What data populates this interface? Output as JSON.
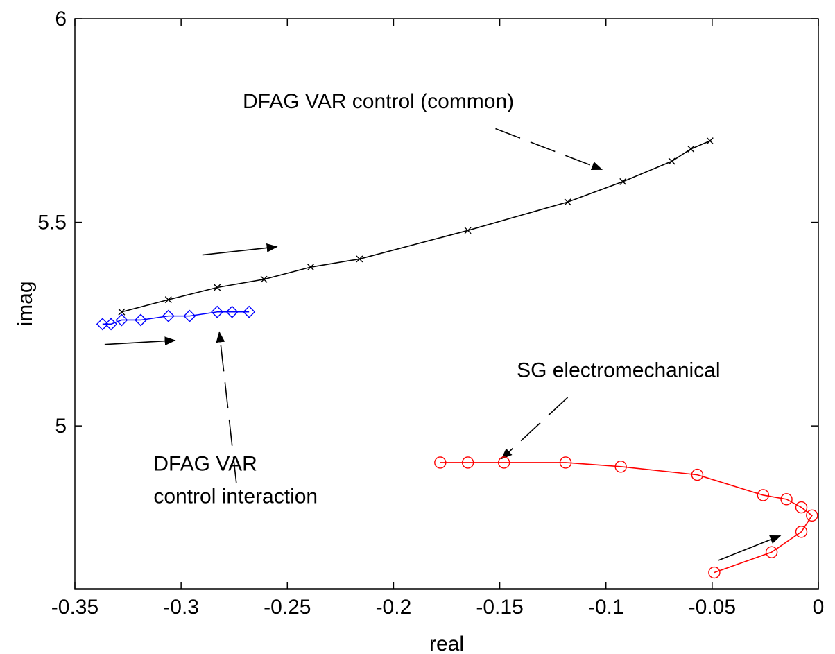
{
  "chart_data": {
    "type": "line",
    "title": "",
    "xlabel": "real",
    "ylabel": "imag",
    "xlim": [
      -0.35,
      0
    ],
    "ylim": [
      4.6,
      6
    ],
    "xticks": [
      -0.35,
      -0.3,
      -0.25,
      -0.2,
      -0.15,
      -0.1,
      -0.05,
      0
    ],
    "xtick_labels": [
      "-0.35",
      "-0.3",
      "-0.25",
      "-0.2",
      "-0.15",
      "-0.1",
      "-0.05",
      "0"
    ],
    "yticks": [
      5,
      5.5,
      6
    ],
    "ytick_labels": [
      "5",
      "5.5",
      "6"
    ],
    "grid": false,
    "series": [
      {
        "color": "#000000",
        "marker": "x",
        "x": [
          -0.328,
          -0.306,
          -0.283,
          -0.261,
          -0.239,
          -0.216,
          -0.165,
          -0.118,
          -0.092,
          -0.069,
          -0.06,
          -0.051
        ],
        "y": [
          5.28,
          5.31,
          5.34,
          5.36,
          5.39,
          5.41,
          5.48,
          5.55,
          5.6,
          5.65,
          5.68,
          5.7
        ]
      },
      {
        "color": "#0000ff",
        "marker": "diamond",
        "x": [
          -0.337,
          -0.333,
          -0.328,
          -0.319,
          -0.306,
          -0.296,
          -0.283,
          -0.276,
          -0.268
        ],
        "y": [
          5.25,
          5.25,
          5.26,
          5.26,
          5.27,
          5.27,
          5.28,
          5.28,
          5.28
        ]
      },
      {
        "color": "#ff0000",
        "marker": "circle",
        "x": [
          -0.178,
          -0.165,
          -0.148,
          -0.119,
          -0.093,
          -0.057,
          -0.026,
          -0.015,
          -0.008,
          -0.003,
          -0.008,
          -0.022,
          -0.049
        ],
        "y": [
          4.91,
          4.91,
          4.91,
          4.91,
          4.9,
          4.88,
          4.83,
          4.82,
          4.8,
          4.78,
          4.74,
          4.69,
          4.64
        ]
      }
    ],
    "annotations": [
      {
        "text": "DFAG VAR control (common)",
        "x": -0.271,
        "y": 5.78
      },
      {
        "text": "SG electromechanical",
        "x": -0.142,
        "y": 5.12
      },
      {
        "text": "DFAG VAR",
        "x": -0.313,
        "y": 4.89
      },
      {
        "text": "control interaction",
        "x": -0.313,
        "y": 4.81
      }
    ],
    "arrows": [
      {
        "style": "dashed",
        "from": [
          -0.152,
          5.73
        ],
        "to": [
          -0.102,
          5.63
        ]
      },
      {
        "style": "solid",
        "from": [
          -0.29,
          5.42
        ],
        "to": [
          -0.255,
          5.44
        ]
      },
      {
        "style": "solid",
        "from": [
          -0.336,
          5.2
        ],
        "to": [
          -0.303,
          5.21
        ]
      },
      {
        "style": "dashed",
        "from": [
          -0.274,
          4.86
        ],
        "to": [
          -0.282,
          5.23
        ]
      },
      {
        "style": "dashed",
        "from": [
          -0.118,
          5.07
        ],
        "to": [
          -0.149,
          4.92
        ]
      },
      {
        "style": "solid",
        "from": [
          -0.047,
          4.67
        ],
        "to": [
          -0.018,
          4.73
        ]
      }
    ]
  }
}
